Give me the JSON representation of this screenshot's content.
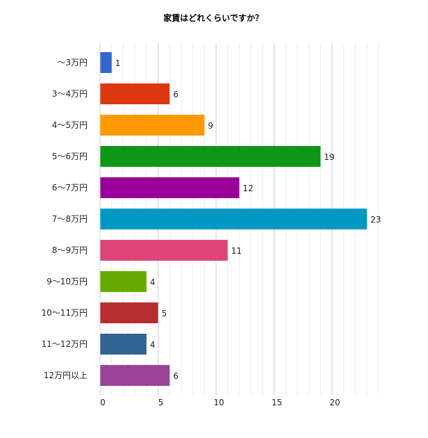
{
  "chart_data": {
    "type": "bar",
    "orientation": "horizontal",
    "title": "家賃はどれくらいですか？",
    "categories": [
      "～3万円",
      "3～4万円",
      "4～5万円",
      "5～6万円",
      "6～7万円",
      "7～8万円",
      "8～9万円",
      "9～10万円",
      "10～11万円",
      "11～12万円",
      "12万円以上"
    ],
    "values": [
      1,
      6,
      9,
      19,
      12,
      23,
      11,
      4,
      5,
      4,
      6
    ],
    "colors": [
      "#3366cc",
      "#dc3912",
      "#ff9900",
      "#109618",
      "#990099",
      "#0099c6",
      "#dd4477",
      "#66aa00",
      "#b82e2e",
      "#316395",
      "#994499"
    ],
    "xticks": [
      0,
      5,
      10,
      15,
      20
    ],
    "xlim": [
      0,
      24
    ],
    "grid": true,
    "legend": "none",
    "xlabel": "",
    "ylabel": ""
  }
}
